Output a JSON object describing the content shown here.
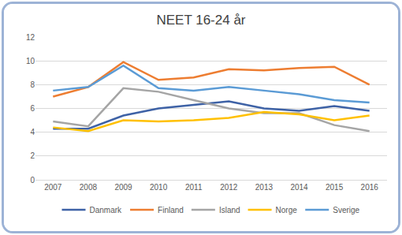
{
  "chart_data": {
    "type": "line",
    "title": "NEET 16-24 år",
    "categories": [
      "2007",
      "2008",
      "2009",
      "2010",
      "2011",
      "2012",
      "2013",
      "2014",
      "2015",
      "2016"
    ],
    "series": [
      {
        "name": "Danmark",
        "color": "#3e62a6",
        "values": [
          4.3,
          4.3,
          5.4,
          6.0,
          6.3,
          6.6,
          6.0,
          5.8,
          6.2,
          5.8
        ]
      },
      {
        "name": "Finland",
        "color": "#ed7d31",
        "values": [
          7.0,
          7.8,
          9.9,
          8.4,
          8.6,
          9.3,
          9.2,
          9.4,
          9.5,
          8.0
        ]
      },
      {
        "name": "Island",
        "color": "#a5a5a5",
        "values": [
          4.9,
          4.5,
          7.7,
          7.4,
          6.7,
          6.0,
          5.6,
          5.6,
          4.6,
          4.1
        ]
      },
      {
        "name": "Norge",
        "color": "#ffc000",
        "values": [
          4.4,
          4.1,
          5.0,
          4.9,
          5.0,
          5.2,
          5.7,
          5.5,
          5.0,
          5.4
        ]
      },
      {
        "name": "Sverige",
        "color": "#5b9bd5",
        "values": [
          7.5,
          7.8,
          9.6,
          7.7,
          7.5,
          7.8,
          7.5,
          7.2,
          6.7,
          6.5
        ]
      }
    ],
    "ylim": [
      0,
      12
    ],
    "yticks": [
      0,
      2,
      4,
      6,
      8,
      10,
      12
    ],
    "grid": true,
    "legend": "bottom"
  }
}
